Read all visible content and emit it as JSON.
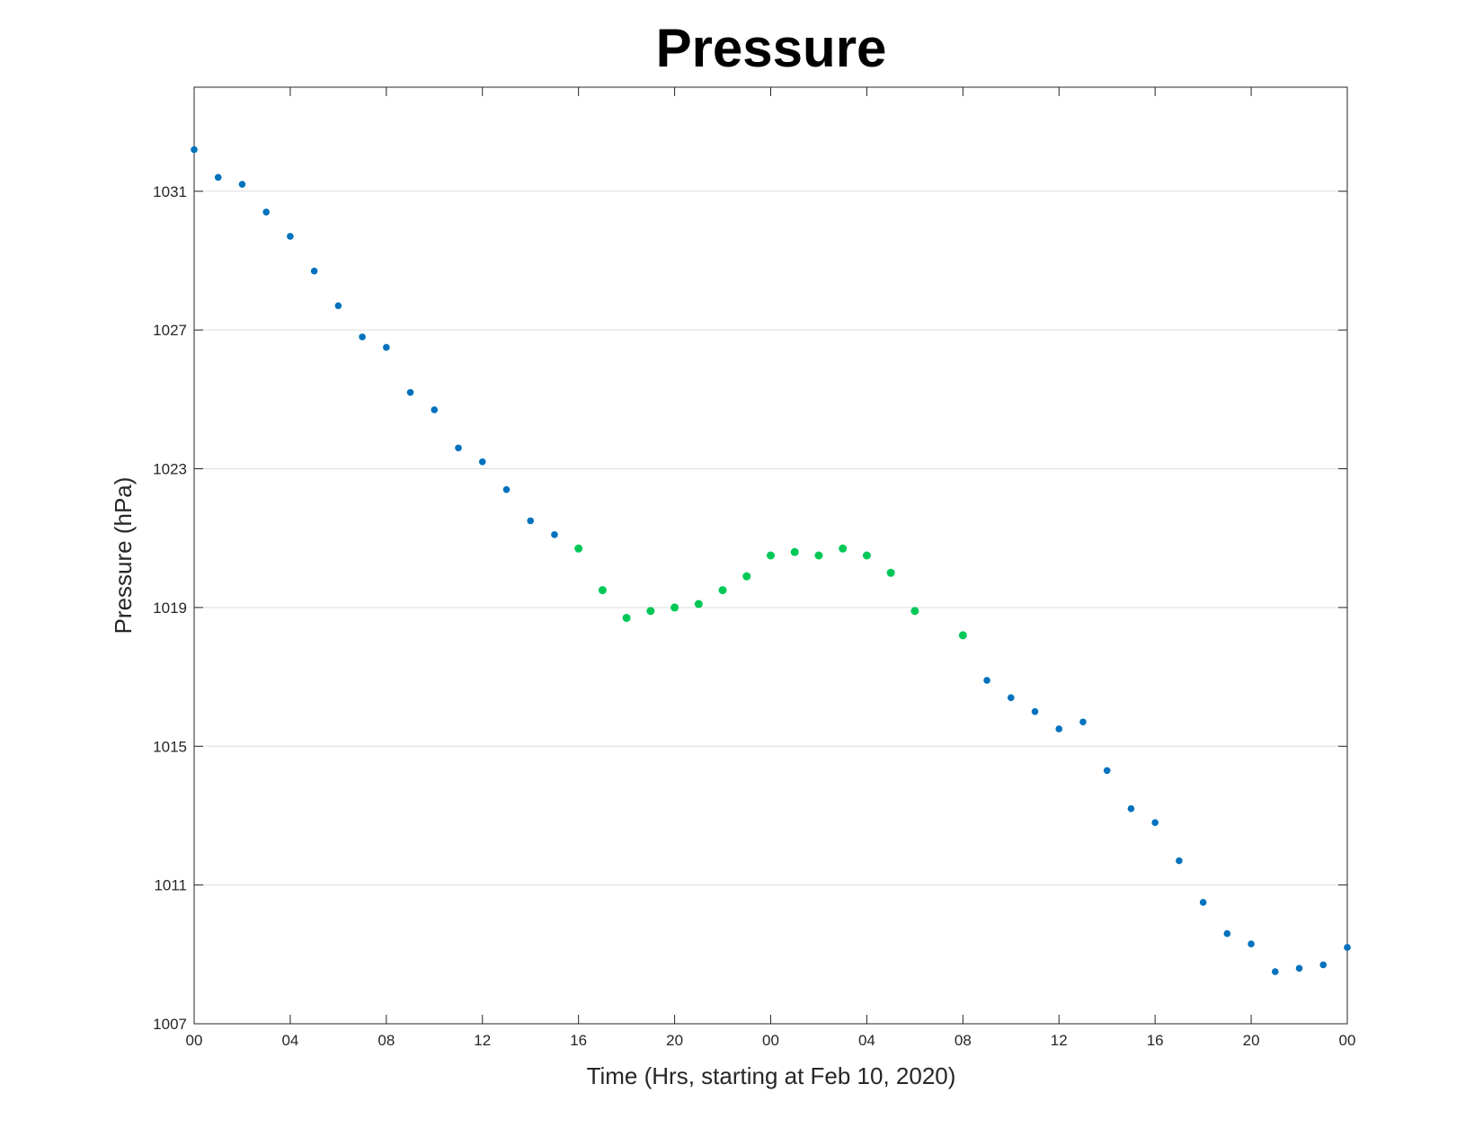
{
  "chart_data": {
    "type": "scatter",
    "title": "Pressure",
    "xlabel": "Time (Hrs, starting at Feb 10, 2020)",
    "ylabel": "Pressure (hPa)",
    "ylim": [
      1007,
      1034
    ],
    "xlim": [
      0,
      48
    ],
    "x_ticks": [
      0,
      4,
      8,
      12,
      16,
      20,
      24,
      28,
      32,
      36,
      40,
      44,
      48
    ],
    "x_tick_labels": [
      "00",
      "04",
      "08",
      "12",
      "16",
      "20",
      "00",
      "04",
      "08",
      "12",
      "16",
      "20",
      "00"
    ],
    "y_ticks": [
      1007,
      1011,
      1015,
      1019,
      1023,
      1027,
      1031
    ],
    "y_tick_labels": [
      "1007",
      "1011",
      "1015",
      "1019",
      "1023",
      "1027",
      "1031"
    ],
    "grid": "horizontal",
    "colors": {
      "blue": "#0072bd",
      "green": "#00c857"
    },
    "series": [
      {
        "color_key": "blue",
        "points": [
          [
            0,
            1032.2
          ],
          [
            1,
            1031.4
          ],
          [
            2,
            1031.2
          ],
          [
            3,
            1030.4
          ],
          [
            4,
            1029.7
          ],
          [
            5,
            1028.7
          ],
          [
            6,
            1027.7
          ],
          [
            7,
            1026.8
          ],
          [
            8,
            1026.5
          ],
          [
            9,
            1025.2
          ],
          [
            10,
            1024.7
          ],
          [
            11,
            1023.6
          ],
          [
            12,
            1023.2
          ],
          [
            13,
            1022.4
          ],
          [
            14,
            1021.5
          ],
          [
            15,
            1021.1
          ],
          [
            33,
            1016.9
          ],
          [
            34,
            1016.4
          ],
          [
            35,
            1016.0
          ],
          [
            36,
            1015.5
          ],
          [
            37,
            1015.7
          ],
          [
            38,
            1014.3
          ],
          [
            39,
            1013.2
          ],
          [
            40,
            1012.8
          ],
          [
            41,
            1011.7
          ],
          [
            42,
            1010.5
          ],
          [
            43,
            1009.6
          ],
          [
            44,
            1009.3
          ],
          [
            45,
            1008.5
          ],
          [
            46,
            1008.6
          ],
          [
            47,
            1008.7
          ],
          [
            48,
            1009.2
          ]
        ]
      },
      {
        "color_key": "green",
        "points": [
          [
            16,
            1020.7
          ],
          [
            17,
            1019.5
          ],
          [
            18,
            1018.7
          ],
          [
            19,
            1018.9
          ],
          [
            20,
            1019.0
          ],
          [
            21,
            1019.1
          ],
          [
            22,
            1019.5
          ],
          [
            23,
            1019.9
          ],
          [
            24,
            1020.5
          ],
          [
            25,
            1020.6
          ],
          [
            26,
            1020.5
          ],
          [
            27,
            1020.7
          ],
          [
            28,
            1020.5
          ],
          [
            29,
            1020.0
          ],
          [
            30,
            1018.9
          ],
          [
            32,
            1018.2
          ]
        ]
      }
    ]
  }
}
